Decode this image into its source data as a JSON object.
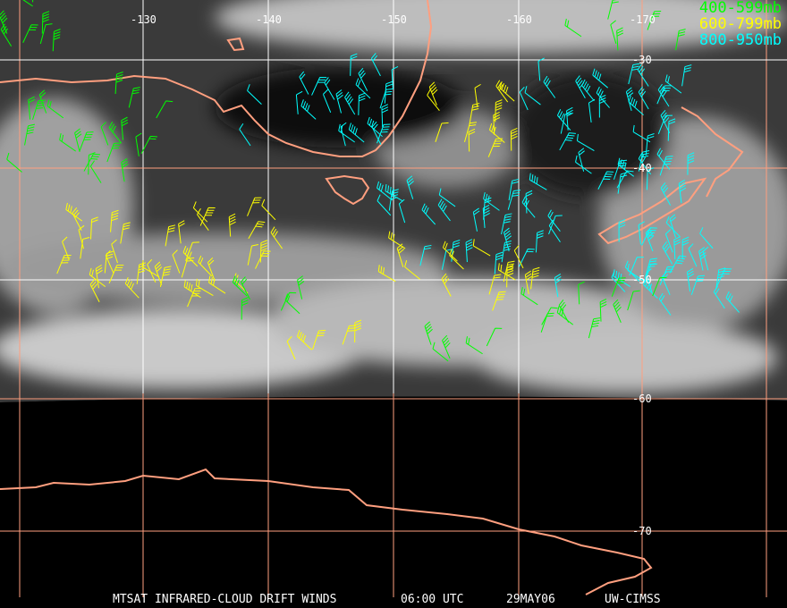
{
  "longitude_labels": [
    "-130",
    "-140",
    "-150",
    "-160",
    "-170"
  ],
  "latitude_labels": [
    "-30",
    "-40",
    "-50",
    "-60",
    "-70"
  ],
  "legend": [
    {
      "label": "400-599mb",
      "color": "#00ff00"
    },
    {
      "label": "600-799mb",
      "color": "#ffff00"
    },
    {
      "label": "800-950mb",
      "color": "#00ffff"
    }
  ],
  "footer": {
    "product": "MTSAT INFRARED-CLOUD DRIFT WINDS",
    "time": "06:00 UTC",
    "date": "29MAY06",
    "source": "UW-CIMSS"
  },
  "colors": {
    "coastline": "#ff9f7f",
    "grid_lat_lon": "#ff9f7f",
    "grid_upper": "#ffffff"
  }
}
